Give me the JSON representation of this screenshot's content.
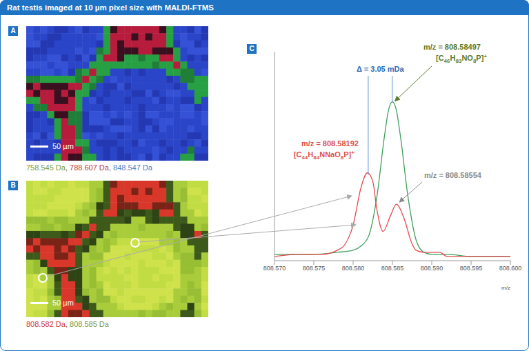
{
  "header": {
    "title": "Rat testis imaged at 10 µm pixel size with MALDI-FTMS"
  },
  "panels": [
    {
      "letter": "A",
      "scale_bar": "50 µm",
      "separator": ", ",
      "caption": [
        {
          "text": "758.545 Da",
          "color": "#7a9a3a"
        },
        {
          "text": "788.607 Da",
          "color": "#c23a3a"
        },
        {
          "text": "848.547 Da",
          "color": "#4a86c8"
        }
      ]
    },
    {
      "letter": "B",
      "scale_bar": "50 µm",
      "separator": ", ",
      "caption": [
        {
          "text": "808.582 Da",
          "color": "#d0393a"
        },
        {
          "text": "808.585 Da",
          "color": "#7a9a3a"
        }
      ]
    }
  ],
  "chart_data": {
    "type": "line",
    "letter": "C",
    "xlabel": "m/z",
    "grid": false,
    "tick_labels": "x",
    "xlim": [
      808.57,
      808.6
    ],
    "xticks": [
      {
        "value": 808.57,
        "label": "808.570"
      },
      808.575,
      {
        "value": 808.58,
        "label": "808.580"
      },
      808.585,
      {
        "value": 808.59,
        "label": "808.590"
      },
      808.595,
      {
        "value": 808.6,
        "label": "808.600"
      }
    ],
    "ylim": [
      0,
      1
    ],
    "series": [
      {
        "color": "#3fa05a",
        "x": [
          808.57,
          808.575,
          808.578,
          808.58,
          808.581,
          808.582,
          808.583,
          808.584,
          808.5845,
          808.585,
          808.5855,
          808.586,
          808.587,
          808.588,
          808.589,
          808.59,
          808.592,
          808.595,
          808.6
        ],
        "values": [
          0.03,
          0.03,
          0.04,
          0.05,
          0.07,
          0.12,
          0.3,
          0.6,
          0.72,
          0.76,
          0.72,
          0.6,
          0.3,
          0.1,
          0.04,
          0.03,
          0.03,
          0.02,
          0.02
        ]
      },
      {
        "color": "#e5484d",
        "x": [
          808.57,
          808.573,
          808.576,
          808.578,
          808.579,
          808.58,
          808.581,
          808.5818,
          808.5825,
          808.583,
          808.5838,
          808.5848,
          808.5855,
          808.5865,
          808.5875,
          808.588,
          808.589,
          808.59,
          808.591,
          808.592,
          808.6
        ],
        "values": [
          0.02,
          0.03,
          0.03,
          0.05,
          0.08,
          0.17,
          0.35,
          0.42,
          0.38,
          0.25,
          0.14,
          0.22,
          0.27,
          0.2,
          0.08,
          0.05,
          0.04,
          0.04,
          0.04,
          0.02,
          0.02
        ]
      }
    ],
    "annotations": [
      {
        "text": "Δ = 3.05 mDa",
        "color": "#2a6bb3"
      },
      {
        "prefix": "m/z =",
        "mz": 808.58497,
        "formula": "[C46H83NO8P]+",
        "color": "#5b7a2b"
      },
      {
        "prefix": "m/z =",
        "mz": 808.58192,
        "formula": "[C44H84NNaO8P]+",
        "color": "#e05050"
      },
      {
        "prefix": "m/z =",
        "mz": 808.58554,
        "color": "#8a8a8a"
      }
    ]
  }
}
